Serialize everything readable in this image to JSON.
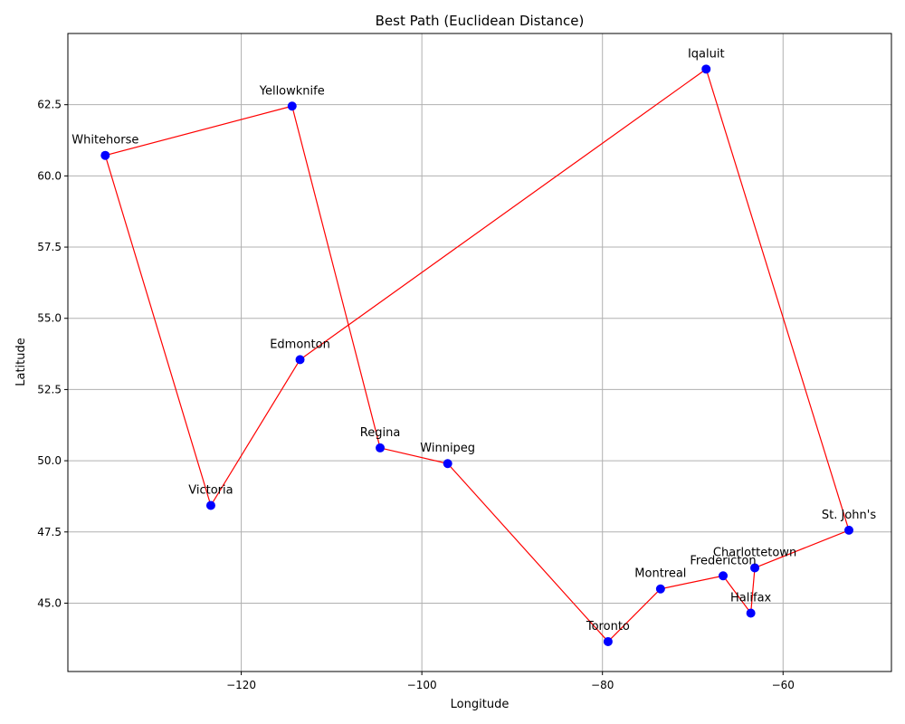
{
  "chart_data": {
    "type": "scatter",
    "title": "Best Path (Euclidean Distance)",
    "xlabel": "Longitude",
    "ylabel": "Latitude",
    "xlim": [
      -139.2,
      -48.0
    ],
    "ylim": [
      42.6,
      65.0
    ],
    "xticks": [
      -120,
      -100,
      -80,
      -60
    ],
    "yticks": [
      45.0,
      47.5,
      50.0,
      52.5,
      55.0,
      57.5,
      60.0,
      62.5
    ],
    "xtick_labels": [
      "−120",
      "−100",
      "−80",
      "−60"
    ],
    "ytick_labels": [
      "45.0",
      "47.5",
      "50.0",
      "52.5",
      "55.0",
      "57.5",
      "60.0",
      "62.5"
    ],
    "grid": true,
    "point_color": "#0000ff",
    "line_color": "#ff0000",
    "points": [
      {
        "name": "Iqaluit",
        "x": -68.52,
        "y": 63.75
      },
      {
        "name": "Yellowknife",
        "x": -114.37,
        "y": 62.45
      },
      {
        "name": "Whitehorse",
        "x": -135.06,
        "y": 60.72
      },
      {
        "name": "Edmonton",
        "x": -113.49,
        "y": 53.55
      },
      {
        "name": "Regina",
        "x": -104.62,
        "y": 50.45
      },
      {
        "name": "Winnipeg",
        "x": -97.14,
        "y": 49.9
      },
      {
        "name": "Victoria",
        "x": -123.37,
        "y": 48.43
      },
      {
        "name": "St. John's",
        "x": -52.71,
        "y": 47.56
      },
      {
        "name": "Charlottetown",
        "x": -63.13,
        "y": 46.24
      },
      {
        "name": "Fredericton",
        "x": -66.64,
        "y": 45.96
      },
      {
        "name": "Montreal",
        "x": -73.57,
        "y": 45.5
      },
      {
        "name": "Halifax",
        "x": -63.57,
        "y": 44.65
      },
      {
        "name": "Toronto",
        "x": -79.38,
        "y": 43.65
      }
    ],
    "path": [
      "Iqaluit",
      "Edmonton",
      "Victoria",
      "Whitehorse",
      "Yellowknife",
      "Regina",
      "Winnipeg",
      "Toronto",
      "Montreal",
      "Fredericton",
      "Halifax",
      "Charlottetown",
      "St. John's",
      "Iqaluit"
    ]
  }
}
